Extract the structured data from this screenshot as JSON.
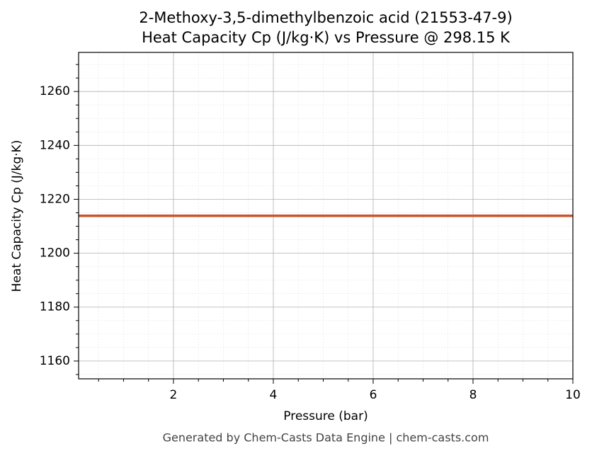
{
  "chart_data": {
    "type": "line",
    "title": "2-Methoxy-3,5-dimethylbenzoic acid (21553-47-9)",
    "subtitle": "Heat Capacity Cp (J/kg·K) vs Pressure @ 298.15 K",
    "x_label": "Pressure (bar)",
    "y_label": "Heat Capacity Cp (J/kg·K)",
    "footer": "Generated by Chem-Casts Data Engine | chem-casts.com",
    "x": [
      0.1,
      10
    ],
    "series": [
      {
        "color": "#c8552c",
        "values": [
          1213.9,
          1213.9
        ]
      }
    ],
    "xlim": [
      0.1,
      10
    ],
    "xticks": [
      2,
      4,
      6,
      8,
      10
    ],
    "xminorticks": [
      0.5,
      1,
      1.5,
      2.5,
      3,
      3.5,
      4.5,
      5,
      5.5,
      6.5,
      7,
      7.5,
      8.5,
      9,
      9.5
    ],
    "ylim": [
      1153.4,
      1274.5
    ],
    "yticks": [
      1160,
      1180,
      1200,
      1220,
      1240,
      1260
    ],
    "yminorticks": [
      1155,
      1165,
      1170,
      1175,
      1185,
      1190,
      1195,
      1205,
      1210,
      1215,
      1225,
      1230,
      1235,
      1245,
      1250,
      1255,
      1265,
      1270
    ],
    "grid": true
  }
}
